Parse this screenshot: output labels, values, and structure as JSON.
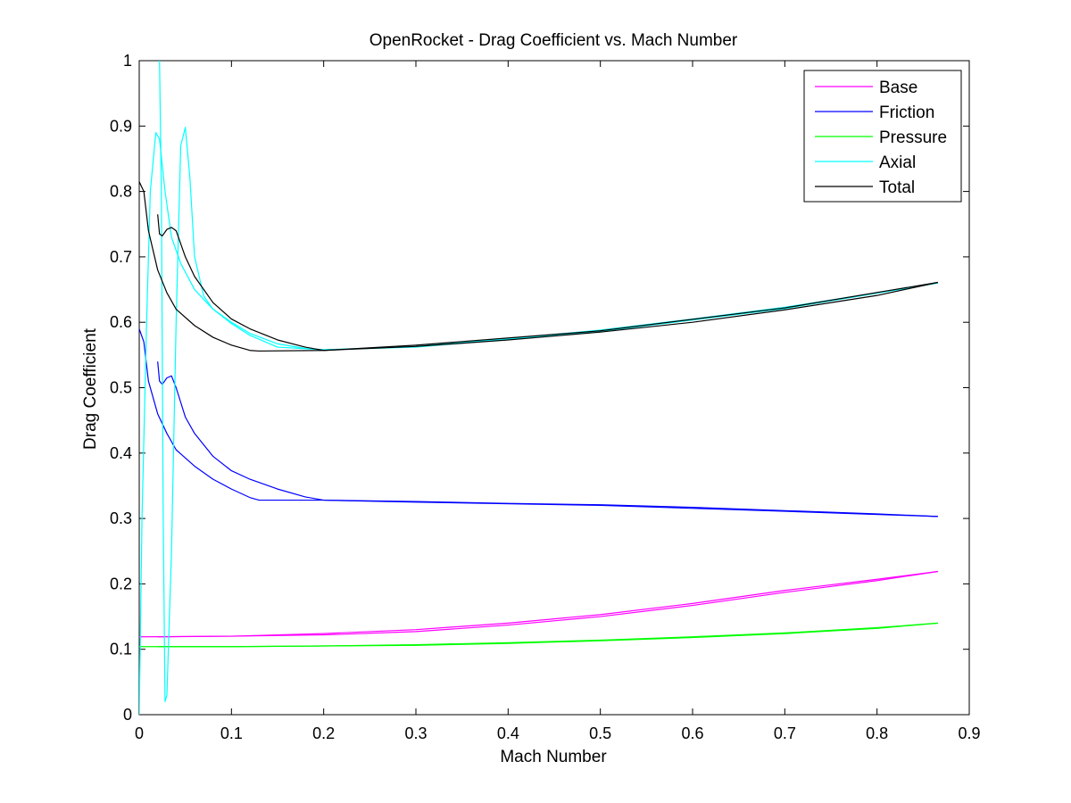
{
  "chart_data": {
    "type": "line",
    "title": "OpenRocket - Drag Coefficient vs. Mach Number",
    "xlabel": "Mach Number",
    "ylabel": "Drag Coefficient",
    "xlim": [
      0,
      0.9
    ],
    "ylim": [
      0,
      1
    ],
    "xticks": [
      "0",
      "0.1",
      "0.2",
      "0.3",
      "0.4",
      "0.5",
      "0.6",
      "0.7",
      "0.8",
      "0.9"
    ],
    "yticks": [
      "0",
      "0.1",
      "0.2",
      "0.3",
      "0.4",
      "0.5",
      "0.6",
      "0.7",
      "0.8",
      "0.9",
      "1"
    ],
    "grid": false,
    "legend_position": "top-right",
    "series": [
      {
        "name": "Base",
        "color": "#ff00ff",
        "segments": [
          [
            [
              0,
              0.119
            ],
            [
              0.1,
              0.12
            ],
            [
              0.2,
              0.124
            ],
            [
              0.3,
              0.13
            ],
            [
              0.4,
              0.14
            ],
            [
              0.5,
              0.153
            ],
            [
              0.6,
              0.17
            ],
            [
              0.7,
              0.19
            ],
            [
              0.8,
              0.207
            ],
            [
              0.866,
              0.219
            ]
          ],
          [
            [
              0.866,
              0.219
            ],
            [
              0.8,
              0.205
            ],
            [
              0.7,
              0.187
            ],
            [
              0.6,
              0.167
            ],
            [
              0.5,
              0.15
            ],
            [
              0.4,
              0.137
            ],
            [
              0.3,
              0.127
            ],
            [
              0.2,
              0.122
            ],
            [
              0.1,
              0.12
            ],
            [
              0.02,
              0.119
            ]
          ]
        ]
      },
      {
        "name": "Friction",
        "color": "#0000ff",
        "segments": [
          [
            [
              0,
              0.59
            ],
            [
              0.005,
              0.57
            ],
            [
              0.01,
              0.51
            ],
            [
              0.02,
              0.46
            ],
            [
              0.03,
              0.43
            ],
            [
              0.04,
              0.405
            ],
            [
              0.06,
              0.38
            ],
            [
              0.08,
              0.36
            ],
            [
              0.1,
              0.345
            ],
            [
              0.12,
              0.332
            ],
            [
              0.13,
              0.328
            ],
            [
              0.2,
              0.328
            ],
            [
              0.3,
              0.326
            ],
            [
              0.4,
              0.323
            ],
            [
              0.5,
              0.321
            ],
            [
              0.6,
              0.317
            ],
            [
              0.7,
              0.312
            ],
            [
              0.8,
              0.307
            ],
            [
              0.866,
              0.303
            ]
          ],
          [
            [
              0.866,
              0.303
            ],
            [
              0.7,
              0.311
            ],
            [
              0.5,
              0.32
            ],
            [
              0.3,
              0.325
            ],
            [
              0.2,
              0.328
            ],
            [
              0.18,
              0.333
            ],
            [
              0.15,
              0.345
            ],
            [
              0.12,
              0.36
            ],
            [
              0.1,
              0.373
            ],
            [
              0.08,
              0.395
            ],
            [
              0.06,
              0.43
            ],
            [
              0.05,
              0.455
            ],
            [
              0.04,
              0.5
            ],
            [
              0.035,
              0.518
            ],
            [
              0.03,
              0.515
            ],
            [
              0.025,
              0.505
            ],
            [
              0.022,
              0.51
            ],
            [
              0.02,
              0.54
            ]
          ]
        ]
      },
      {
        "name": "Pressure",
        "color": "#00ff00",
        "segments": [
          [
            [
              0,
              0.104
            ],
            [
              0.1,
              0.104
            ],
            [
              0.2,
              0.105
            ],
            [
              0.3,
              0.107
            ],
            [
              0.4,
              0.11
            ],
            [
              0.5,
              0.114
            ],
            [
              0.6,
              0.119
            ],
            [
              0.7,
              0.125
            ],
            [
              0.8,
              0.133
            ],
            [
              0.866,
              0.14
            ]
          ],
          [
            [
              0.866,
              0.14
            ],
            [
              0.8,
              0.132
            ],
            [
              0.7,
              0.124
            ],
            [
              0.6,
              0.118
            ],
            [
              0.5,
              0.113
            ],
            [
              0.4,
              0.109
            ],
            [
              0.3,
              0.106
            ],
            [
              0.2,
              0.105
            ],
            [
              0.1,
              0.104
            ],
            [
              0.02,
              0.104
            ]
          ]
        ]
      },
      {
        "name": "Axial",
        "color": "#00ffff",
        "segments": [
          [
            [
              0,
              0.0
            ],
            [
              0.003,
              0.3
            ],
            [
              0.008,
              0.6
            ],
            [
              0.012,
              0.8
            ],
            [
              0.018,
              0.89
            ],
            [
              0.022,
              0.88
            ],
            [
              0.028,
              0.8
            ],
            [
              0.035,
              0.73
            ],
            [
              0.045,
              0.69
            ],
            [
              0.06,
              0.65
            ],
            [
              0.08,
              0.62
            ],
            [
              0.1,
              0.6
            ],
            [
              0.12,
              0.583
            ],
            [
              0.15,
              0.567
            ],
            [
              0.18,
              0.56
            ],
            [
              0.2,
              0.558
            ],
            [
              0.3,
              0.563
            ],
            [
              0.4,
              0.575
            ],
            [
              0.5,
              0.588
            ],
            [
              0.6,
              0.605
            ],
            [
              0.7,
              0.623
            ],
            [
              0.8,
              0.645
            ],
            [
              0.866,
              0.66
            ]
          ],
          [
            [
              0.866,
              0.66
            ],
            [
              0.7,
              0.621
            ],
            [
              0.5,
              0.586
            ],
            [
              0.3,
              0.562
            ],
            [
              0.2,
              0.558
            ],
            [
              0.15,
              0.562
            ],
            [
              0.12,
              0.58
            ],
            [
              0.1,
              0.598
            ],
            [
              0.08,
              0.62
            ],
            [
              0.07,
              0.64
            ],
            [
              0.06,
              0.7
            ],
            [
              0.055,
              0.82
            ],
            [
              0.05,
              0.898
            ],
            [
              0.045,
              0.87
            ],
            [
              0.04,
              0.6
            ],
            [
              0.035,
              0.25
            ],
            [
              0.03,
              0.03
            ],
            [
              0.028,
              0.02
            ],
            [
              0.026,
              0.3
            ],
            [
              0.024,
              0.8
            ],
            [
              0.022,
              1.0
            ]
          ]
        ]
      },
      {
        "name": "Total",
        "color": "#000000",
        "segments": [
          [
            [
              0,
              0.815
            ],
            [
              0.005,
              0.8
            ],
            [
              0.01,
              0.74
            ],
            [
              0.02,
              0.68
            ],
            [
              0.03,
              0.645
            ],
            [
              0.04,
              0.62
            ],
            [
              0.06,
              0.595
            ],
            [
              0.08,
              0.577
            ],
            [
              0.1,
              0.565
            ],
            [
              0.12,
              0.557
            ],
            [
              0.13,
              0.556
            ],
            [
              0.2,
              0.557
            ],
            [
              0.3,
              0.563
            ],
            [
              0.4,
              0.573
            ],
            [
              0.5,
              0.585
            ],
            [
              0.6,
              0.6
            ],
            [
              0.7,
              0.619
            ],
            [
              0.8,
              0.641
            ],
            [
              0.866,
              0.661
            ]
          ],
          [
            [
              0.866,
              0.661
            ],
            [
              0.7,
              0.622
            ],
            [
              0.5,
              0.587
            ],
            [
              0.3,
              0.565
            ],
            [
              0.2,
              0.557
            ],
            [
              0.18,
              0.562
            ],
            [
              0.15,
              0.573
            ],
            [
              0.12,
              0.59
            ],
            [
              0.1,
              0.605
            ],
            [
              0.08,
              0.63
            ],
            [
              0.06,
              0.67
            ],
            [
              0.05,
              0.7
            ],
            [
              0.04,
              0.74
            ],
            [
              0.035,
              0.745
            ],
            [
              0.03,
              0.742
            ],
            [
              0.025,
              0.732
            ],
            [
              0.022,
              0.735
            ],
            [
              0.02,
              0.765
            ]
          ]
        ]
      }
    ]
  }
}
